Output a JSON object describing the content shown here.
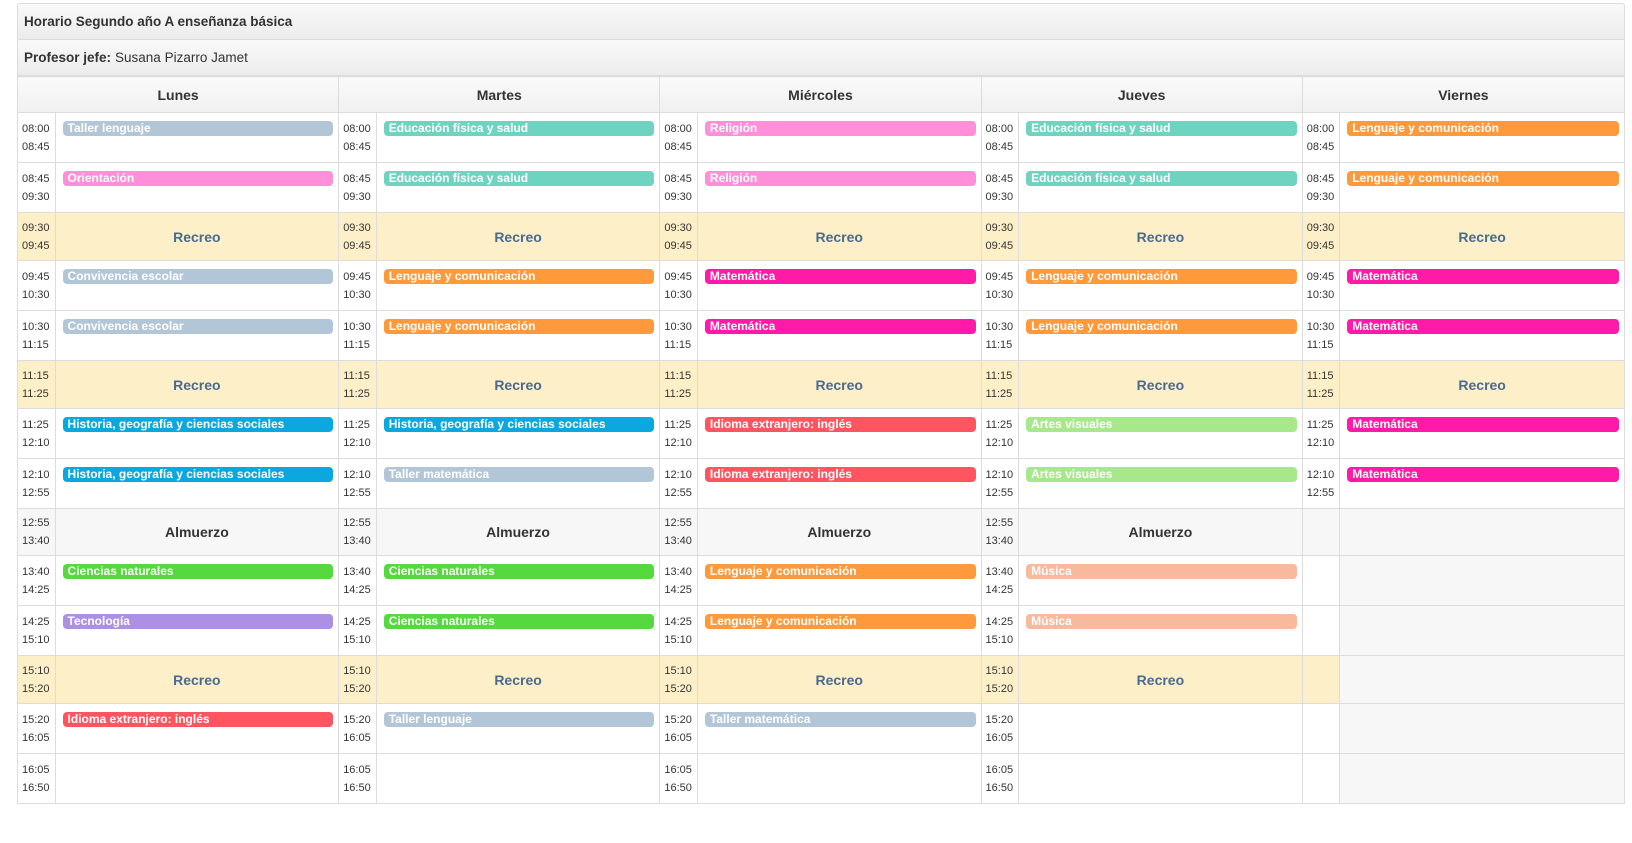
{
  "title": "Horario Segundo año A enseñanza básica",
  "teacher": {
    "label": "Profesor jefe:",
    "name": "Susana Pizarro Jamet"
  },
  "days": [
    "Lunes",
    "Martes",
    "Miércoles",
    "Jueves",
    "Viernes"
  ],
  "colors": {
    "gray": "#b3c6d7",
    "teal": "#6fd3c1",
    "orange": "#ff9a3c",
    "pink": "#ff8fd8",
    "magenta": "#ff1aa8",
    "blue": "#0aa8df",
    "red": "#ff5560",
    "lightgreen": "#a6e88a",
    "green": "#55d93f",
    "peach": "#f8b99c",
    "purple": "#ab90e4",
    "recreo_bg": "#fdefc8",
    "recreo_text": "#4a6a92"
  },
  "rows": [
    {
      "type": "class",
      "start": "08:00",
      "end": "08:45",
      "cells": [
        {
          "subject": "Taller lenguaje",
          "color": "gray"
        },
        {
          "subject": "Educación física y salud",
          "color": "teal"
        },
        {
          "subject": "Religión",
          "color": "pink"
        },
        {
          "subject": "Educación física y salud",
          "color": "teal"
        },
        {
          "subject": "Lenguaje y comunicación",
          "color": "orange"
        }
      ]
    },
    {
      "type": "class",
      "start": "08:45",
      "end": "09:30",
      "cells": [
        {
          "subject": "Orientación",
          "color": "pink"
        },
        {
          "subject": "Educación física y salud",
          "color": "teal"
        },
        {
          "subject": "Religión",
          "color": "pink"
        },
        {
          "subject": "Educación física y salud",
          "color": "teal"
        },
        {
          "subject": "Lenguaje y comunicación",
          "color": "orange"
        }
      ]
    },
    {
      "type": "recreo",
      "start": "09:30",
      "end": "09:45",
      "cells": [
        {
          "label": "Recreo"
        },
        {
          "label": "Recreo"
        },
        {
          "label": "Recreo"
        },
        {
          "label": "Recreo"
        },
        {
          "label": "Recreo"
        }
      ]
    },
    {
      "type": "class",
      "start": "09:45",
      "end": "10:30",
      "cells": [
        {
          "subject": "Convivencia escolar",
          "color": "gray"
        },
        {
          "subject": "Lenguaje y comunicación",
          "color": "orange"
        },
        {
          "subject": "Matemática",
          "color": "magenta"
        },
        {
          "subject": "Lenguaje y comunicación",
          "color": "orange"
        },
        {
          "subject": "Matemática",
          "color": "magenta"
        }
      ]
    },
    {
      "type": "class",
      "start": "10:30",
      "end": "11:15",
      "cells": [
        {
          "subject": "Convivencia escolar",
          "color": "gray"
        },
        {
          "subject": "Lenguaje y comunicación",
          "color": "orange"
        },
        {
          "subject": "Matemática",
          "color": "magenta"
        },
        {
          "subject": "Lenguaje y comunicación",
          "color": "orange"
        },
        {
          "subject": "Matemática",
          "color": "magenta"
        }
      ]
    },
    {
      "type": "recreo",
      "start": "11:15",
      "end": "11:25",
      "cells": [
        {
          "label": "Recreo"
        },
        {
          "label": "Recreo"
        },
        {
          "label": "Recreo"
        },
        {
          "label": "Recreo"
        },
        {
          "label": "Recreo"
        }
      ]
    },
    {
      "type": "class",
      "start": "11:25",
      "end": "12:10",
      "cells": [
        {
          "subject": "Historia, geografía y ciencias sociales",
          "color": "blue"
        },
        {
          "subject": "Historia, geografía y ciencias sociales",
          "color": "blue"
        },
        {
          "subject": "Idioma extranjero: inglés",
          "color": "red"
        },
        {
          "subject": "Artes visuales",
          "color": "lightgreen"
        },
        {
          "subject": "Matemática",
          "color": "magenta"
        }
      ]
    },
    {
      "type": "class",
      "start": "12:10",
      "end": "12:55",
      "cells": [
        {
          "subject": "Historia, geografía y ciencias sociales",
          "color": "blue"
        },
        {
          "subject": "Taller matemática",
          "color": "gray"
        },
        {
          "subject": "Idioma extranjero: inglés",
          "color": "red"
        },
        {
          "subject": "Artes visuales",
          "color": "lightgreen"
        },
        {
          "subject": "Matemática",
          "color": "magenta"
        }
      ]
    },
    {
      "type": "lunch",
      "start": "12:55",
      "end": "13:40",
      "cells": [
        {
          "label": "Almuerzo"
        },
        {
          "label": "Almuerzo"
        },
        {
          "label": "Almuerzo"
        },
        {
          "label": "Almuerzo"
        },
        null
      ]
    },
    {
      "type": "class",
      "start": "13:40",
      "end": "14:25",
      "cells": [
        {
          "subject": "Ciencias naturales",
          "color": "green"
        },
        {
          "subject": "Ciencias naturales",
          "color": "green"
        },
        {
          "subject": "Lenguaje y comunicación",
          "color": "orange"
        },
        {
          "subject": "Música",
          "color": "peach"
        },
        null
      ]
    },
    {
      "type": "class",
      "start": "14:25",
      "end": "15:10",
      "cells": [
        {
          "subject": "Tecnología",
          "color": "purple"
        },
        {
          "subject": "Ciencias naturales",
          "color": "green"
        },
        {
          "subject": "Lenguaje y comunicación",
          "color": "orange"
        },
        {
          "subject": "Música",
          "color": "peach"
        },
        null
      ]
    },
    {
      "type": "recreo",
      "start": "15:10",
      "end": "15:20",
      "cells": [
        {
          "label": "Recreo"
        },
        {
          "label": "Recreo"
        },
        {
          "label": "Recreo"
        },
        {
          "label": "Recreo"
        },
        null
      ]
    },
    {
      "type": "class",
      "start": "15:20",
      "end": "16:05",
      "cells": [
        {
          "subject": "Idioma extranjero: inglés",
          "color": "red"
        },
        {
          "subject": "Taller lenguaje",
          "color": "gray"
        },
        {
          "subject": "Taller matemática",
          "color": "gray"
        },
        {
          "subject": "",
          "color": ""
        },
        null
      ]
    },
    {
      "type": "class",
      "start": "16:05",
      "end": "16:50",
      "cells": [
        {
          "subject": "",
          "color": ""
        },
        {
          "subject": "",
          "color": ""
        },
        {
          "subject": "",
          "color": ""
        },
        {
          "subject": "",
          "color": ""
        },
        null
      ]
    }
  ]
}
